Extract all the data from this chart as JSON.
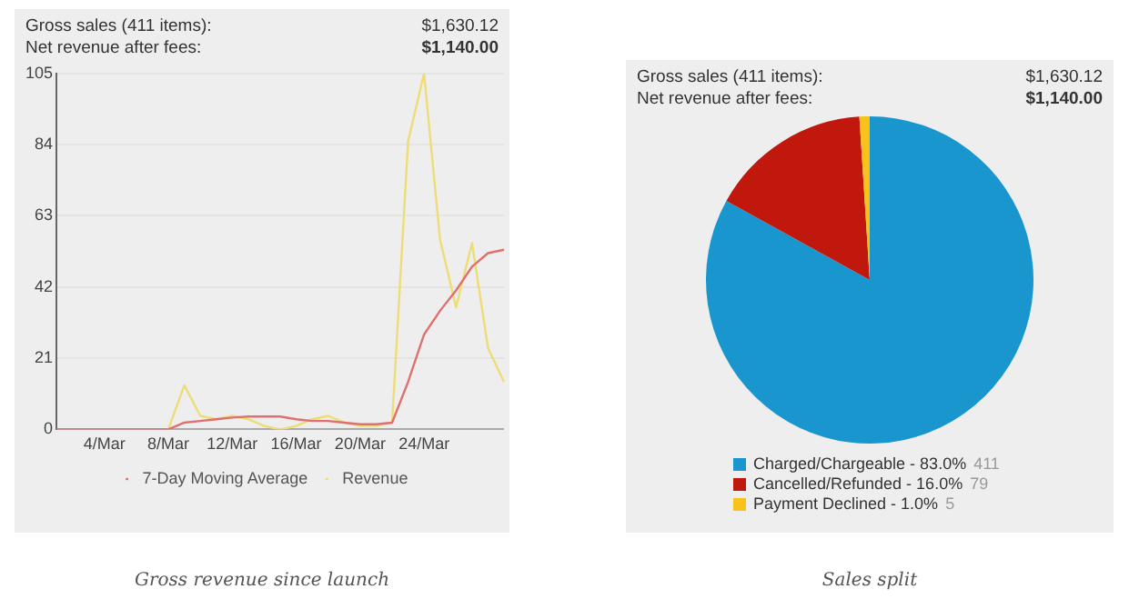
{
  "chart_data": [
    {
      "type": "line",
      "title": "Gross revenue since launch",
      "annotations": [
        "Gross sales (411 items):",
        "$1,630.12",
        "Net revenue after fees:",
        "$1,140.00"
      ],
      "categories": [
        null,
        null,
        null,
        "4/Mar",
        null,
        null,
        null,
        "8/Mar",
        null,
        null,
        null,
        "12/Mar",
        null,
        null,
        null,
        "16/Mar",
        null,
        null,
        null,
        "20/Mar",
        null,
        null,
        null,
        "24/Mar",
        null,
        null,
        null,
        null,
        null
      ],
      "series": [
        {
          "name": "Revenue",
          "color": "#eedd77",
          "values": [
            null,
            null,
            null,
            null,
            null,
            null,
            null,
            0,
            13,
            4,
            3,
            4,
            3,
            1,
            0,
            1,
            3,
            4,
            2,
            1,
            1,
            2,
            85,
            105,
            56,
            36,
            55,
            24,
            14
          ]
        },
        {
          "name": "7-Day Moving Average",
          "color": "#e07070",
          "values": [
            0,
            0,
            0,
            0,
            0,
            0,
            0,
            0,
            2,
            2.5,
            3,
            3.5,
            3.8,
            3.8,
            3.8,
            3,
            2.5,
            2.5,
            2,
            1.5,
            1.5,
            2,
            14,
            28,
            35,
            41,
            48,
            52,
            53
          ]
        }
      ],
      "ylim": [
        0,
        105
      ],
      "yticks": [
        0,
        21,
        42,
        63,
        84,
        105
      ],
      "grid": "y",
      "legend": "bottom",
      "marker": "none",
      "line_style": "solid"
    },
    {
      "type": "pie",
      "title": "Sales split",
      "annotations": [
        "Gross sales (411 items):",
        "$1,630.12",
        "Net revenue after fees:",
        "$1,140.00"
      ],
      "categories": [
        "Charged/Chargeable - 83.0%",
        "Cancelled/Refunded - 16.0%",
        "Payment Declined - 1.0%"
      ],
      "values": [
        411,
        79,
        5
      ],
      "data_labels": true,
      "colors": [
        "#1a96cf",
        "#c0180c",
        "#f7c21a"
      ],
      "legend": "bottom"
    }
  ]
}
